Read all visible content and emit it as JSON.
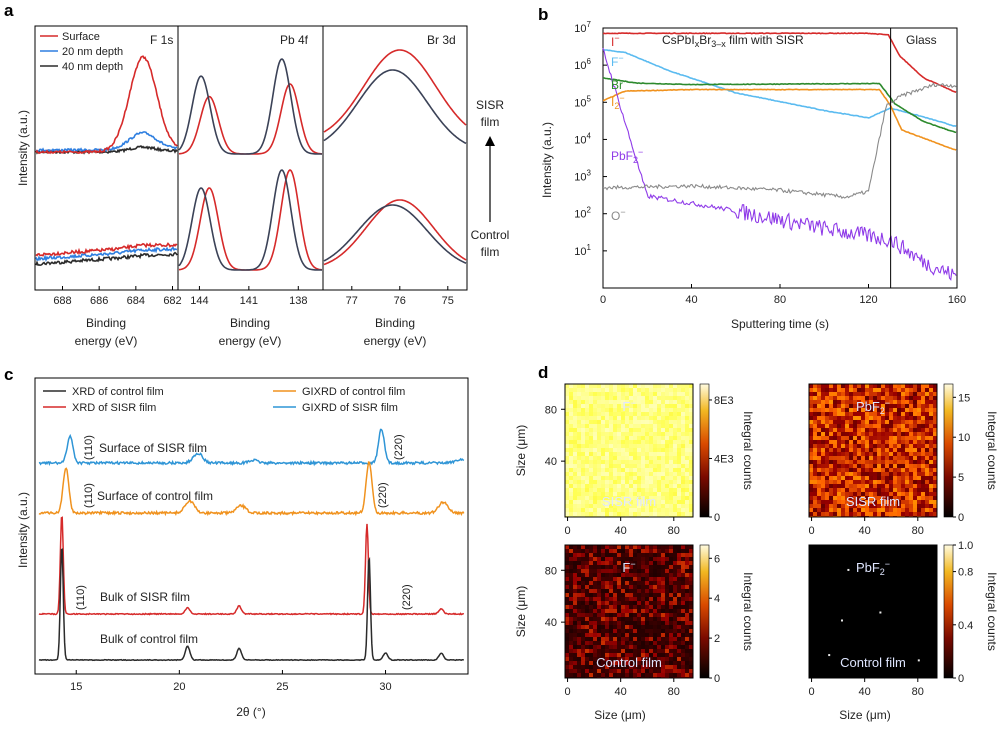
{
  "panels": {
    "a": "a",
    "b": "b",
    "c": "c",
    "d": "d"
  },
  "colors": {
    "red": "#d62a2a",
    "blue": "#2f7fe0",
    "black": "#2b2b2b",
    "navy": "#3b4257",
    "orange": "#f0921e",
    "skyblue": "#2f95d6",
    "green": "#2d8a2d",
    "lightblue": "#5bbbf0",
    "purple": "#8f3be8",
    "gray": "#8a8a8a"
  },
  "chart_data": [
    {
      "id": "a",
      "type": "line",
      "ylabel": "Intensity (a.u.)",
      "legend": [
        "Surface",
        "20 nm depth",
        "40 nm depth"
      ],
      "side_labels": {
        "top": "SISR",
        "top2": "film",
        "bottom": "Control",
        "bottom2": "film"
      },
      "subplots": [
        {
          "title": "F 1s",
          "xlabel": "Binding",
          "xlabel2": "energy (eV)",
          "xlim": [
            689.5,
            681.7
          ],
          "ticks": [
            "688",
            "686",
            "684",
            "682"
          ],
          "tickvals": [
            688,
            686,
            684,
            682
          ],
          "peaks_top": {
            "surface": {
              "center": 683.6,
              "height": 1.0
            },
            "d20": {
              "center": 683.6,
              "height": 0.18
            },
            "d40": {
              "center": 683.6,
              "height": 0.05
            }
          },
          "peaks_bottom": {
            "surface": {
              "center": 683.6,
              "height": 0.05
            },
            "d20": {
              "center": 683.6,
              "height": 0.03
            },
            "d40": {
              "center": 683.6,
              "height": 0.02
            }
          }
        },
        {
          "title": "Pb 4f",
          "xlabel": "Binding",
          "xlabel2": "energy (eV)",
          "xlim": [
            145.3,
            136.5
          ],
          "ticks": [
            "144",
            "141",
            "138"
          ],
          "tickvals": [
            144,
            141,
            138
          ],
          "sisr_peaks": [
            143.9,
            139.0
          ],
          "control_peaks": [
            143.4,
            138.5
          ],
          "shift_sisr_ev": 0.5
        },
        {
          "title": "Br 3d",
          "xlabel": "Binding",
          "xlabel2": "energy (eV)",
          "xlim": [
            77.6,
            74.6
          ],
          "ticks": [
            "77",
            "76",
            "75"
          ],
          "tickvals": [
            77,
            76,
            75
          ],
          "sisr_center": 76.0,
          "control_center": 76.15
        }
      ]
    },
    {
      "id": "b",
      "type": "line",
      "yscale": "log",
      "xlabel": "Sputtering time (s)",
      "ylabel": "Intensity (a.u.)",
      "xlim": [
        0,
        160
      ],
      "ylim": [
        1,
        10000000
      ],
      "xticks": [
        "0",
        "40",
        "80",
        "120",
        "160"
      ],
      "xtickvals": [
        0,
        40,
        80,
        120,
        160
      ],
      "yticks": [
        "10",
        "10",
        "10",
        "10",
        "10",
        "10",
        "10"
      ],
      "ytickexps": [
        "1",
        "2",
        "3",
        "4",
        "5",
        "6",
        "7"
      ],
      "region_labels": {
        "film_pre": "CsPbI",
        "film_x": "x",
        "film_mid": "Br",
        "film_sub": "3–x",
        "film_post": " film with SISR",
        "glass": "Glass"
      },
      "interface_time": 130,
      "series": [
        {
          "name": "I",
          "sup": "−",
          "color": "#d62a2a",
          "points": [
            [
              0,
              7200000
            ],
            [
              120,
              7200000
            ],
            [
              129,
              6500000
            ],
            [
              134,
              1800000
            ],
            [
              145,
              450000
            ],
            [
              160,
              180000
            ]
          ]
        },
        {
          "name": "F",
          "sup": "−",
          "color": "#5bbbf0",
          "points": [
            [
              0,
              2600000
            ],
            [
              10,
              2200000
            ],
            [
              30,
              700000
            ],
            [
              60,
              180000
            ],
            [
              100,
              60000
            ],
            [
              120,
              38000
            ],
            [
              130,
              70000
            ],
            [
              145,
              40000
            ],
            [
              160,
              22000
            ]
          ]
        },
        {
          "name": "Br",
          "sup": "−",
          "color": "#2d8a2d",
          "points": [
            [
              0,
              450000
            ],
            [
              15,
              330000
            ],
            [
              40,
              300000
            ],
            [
              125,
              320000
            ],
            [
              132,
              90000
            ],
            [
              145,
              30000
            ],
            [
              160,
              15000
            ]
          ]
        },
        {
          "name": "I",
          "sub": "2",
          "sup": "−",
          "color": "#f0921e",
          "points": [
            [
              0,
              110000
            ],
            [
              10,
              200000
            ],
            [
              40,
              220000
            ],
            [
              125,
              220000
            ],
            [
              130,
              80000
            ],
            [
              135,
              18000
            ],
            [
              160,
              5000
            ]
          ]
        },
        {
          "name": "PbF",
          "sub": "2",
          "sup": "−",
          "color": "#8f3be8",
          "points": [
            [
              0,
              2700000
            ],
            [
              20,
              300
            ],
            [
              60,
              120
            ],
            [
              100,
              40
            ],
            [
              130,
              20
            ],
            [
              145,
              5
            ],
            [
              160,
              2
            ]
          ]
        },
        {
          "name": "O",
          "sup": "−",
          "color": "#8a8a8a",
          "points": [
            [
              0,
              500
            ],
            [
              40,
              560
            ],
            [
              80,
              430
            ],
            [
              110,
              280
            ],
            [
              120,
              400
            ],
            [
              128,
              80000
            ],
            [
              135,
              150000
            ],
            [
              150,
              300000
            ],
            [
              160,
              280000
            ]
          ]
        }
      ]
    },
    {
      "id": "c",
      "type": "line",
      "xlabel": "2θ (°)",
      "ylabel": "Intensity (a.u.)",
      "xlim": [
        13,
        34
      ],
      "xticks": [
        "15",
        "20",
        "25",
        "30"
      ],
      "xtickvals": [
        15,
        20,
        25,
        30
      ],
      "legend": [
        "XRD of control film",
        "XRD of SISR film",
        "GIXRD of control film",
        "GIXRD of SISR film"
      ],
      "series": [
        {
          "name": "Surface of SISR film",
          "color": "#2f95d6",
          "peaks": [
            [
              14.7,
              0.6
            ],
            [
              20.9,
              0.22
            ],
            [
              23.6,
              0.06
            ],
            [
              29.8,
              0.75
            ],
            [
              33.6,
              0.08
            ]
          ],
          "annotations": [
            "(110)",
            "(220)"
          ]
        },
        {
          "name": "Surface of control film",
          "color": "#f0921e",
          "peaks": [
            [
              14.5,
              0.75
            ],
            [
              20.5,
              0.2
            ],
            [
              23.0,
              0.12
            ],
            [
              29.2,
              0.85
            ],
            [
              32.8,
              0.18
            ]
          ],
          "annotations": [
            "(110)",
            "(220)"
          ]
        },
        {
          "name": "Bulk of SISR film",
          "color": "#d62a2a",
          "peaks": [
            [
              14.3,
              1.0
            ],
            [
              20.4,
              0.06
            ],
            [
              22.9,
              0.08
            ],
            [
              29.1,
              0.9
            ],
            [
              32.7,
              0.05
            ]
          ],
          "annotations": [
            "(110)",
            "(220)"
          ]
        },
        {
          "name": "Bulk of control film",
          "color": "#2b2b2b",
          "peaks": [
            [
              14.3,
              1.0
            ],
            [
              20.4,
              0.12
            ],
            [
              22.9,
              0.1
            ],
            [
              29.2,
              0.9
            ],
            [
              30.0,
              0.06
            ],
            [
              32.7,
              0.06
            ]
          ],
          "annotations": []
        }
      ]
    },
    {
      "id": "d",
      "type": "heatmap",
      "maps": [
        {
          "ion": "F",
          "sup": "−",
          "sample": "SISR film",
          "cbar_label": "Integral counts",
          "cbar_ticks": [
            "8E3",
            "4E3",
            "0"
          ],
          "x_ticks": [
            "0",
            "40",
            "80"
          ],
          "y_ticks": [
            "80",
            "40"
          ],
          "ylabel": "Size (μm)",
          "style": "bright"
        },
        {
          "ion": "PbF",
          "sub": "2",
          "sup": "−",
          "sample": "SISR film",
          "cbar_label": "Integral counts",
          "cbar_ticks": [
            "15",
            "10",
            "5",
            "0"
          ],
          "x_ticks": [
            "0",
            "40",
            "80"
          ],
          "y_ticks": [],
          "ylabel": "",
          "style": "mid"
        },
        {
          "ion": "F",
          "sup": "−",
          "sample": "Control film",
          "cbar_label": "Integral counts",
          "cbar_ticks": [
            "6",
            "4",
            "2",
            "0"
          ],
          "x_ticks": [
            "0",
            "40",
            "80"
          ],
          "y_ticks": [
            "80",
            "40"
          ],
          "ylabel": "Size (μm)",
          "xlabel": "Size (μm)",
          "style": "dark"
        },
        {
          "ion": "PbF",
          "sub": "2",
          "sup": "−",
          "sample": "Control film",
          "cbar_label": "Integral counts",
          "cbar_ticks": [
            "1.0",
            "0.8",
            "0.4",
            "0"
          ],
          "x_ticks": [
            "0",
            "40",
            "80"
          ],
          "y_ticks": [],
          "ylabel": "",
          "xlabel": "Size (μm)",
          "style": "black"
        }
      ]
    }
  ]
}
